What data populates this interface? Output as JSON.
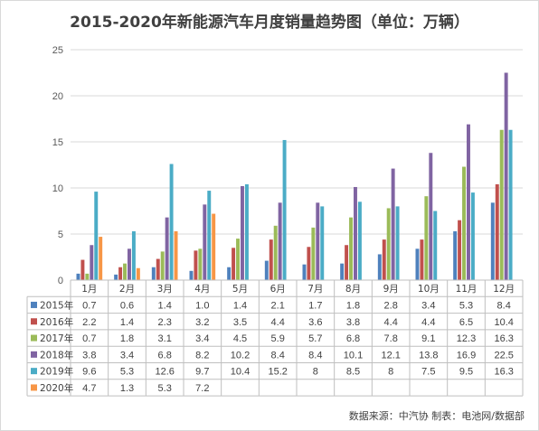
{
  "chart_data": {
    "type": "bar",
    "title": "2015-2020年新能源汽车月度销量趋势图（单位：万辆）",
    "categories": [
      "1月",
      "2月",
      "3月",
      "4月",
      "5月",
      "6月",
      "7月",
      "8月",
      "9月",
      "10月",
      "11月",
      "12月"
    ],
    "ylim": [
      0,
      25
    ],
    "yticks": [
      "0",
      "5",
      "10",
      "15",
      "20",
      "25"
    ],
    "grid": true,
    "legend": "data-table",
    "series": [
      {
        "name": "2015年",
        "color": "#4f81bd",
        "values": [
          0.7,
          0.6,
          1.4,
          1.0,
          1.4,
          2.1,
          1.7,
          1.8,
          2.8,
          3.4,
          5.3,
          8.4
        ],
        "labels": [
          "0.7",
          "0.6",
          "1.4",
          "1.0",
          "1.4",
          "2.1",
          "1.7",
          "1.8",
          "2.8",
          "3.4",
          "5.3",
          "8.4"
        ]
      },
      {
        "name": "2016年",
        "color": "#c0504d",
        "values": [
          2.2,
          1.4,
          2.3,
          3.2,
          3.5,
          4.4,
          3.6,
          3.8,
          4.4,
          4.4,
          6.5,
          10.4
        ],
        "labels": [
          "2.2",
          "1.4",
          "2.3",
          "3.2",
          "3.5",
          "4.4",
          "3.6",
          "3.8",
          "4.4",
          "4.4",
          "6.5",
          "10.4"
        ]
      },
      {
        "name": "2017年",
        "color": "#9bbb59",
        "values": [
          0.7,
          1.8,
          3.1,
          3.4,
          4.5,
          5.9,
          5.7,
          6.8,
          7.8,
          9.1,
          12.3,
          16.3
        ],
        "labels": [
          "0.7",
          "1.8",
          "3.1",
          "3.4",
          "4.5",
          "5.9",
          "5.7",
          "6.8",
          "7.8",
          "9.1",
          "12.3",
          "16.3"
        ]
      },
      {
        "name": "2018年",
        "color": "#8064a2",
        "values": [
          3.8,
          3.4,
          6.8,
          8.2,
          10.2,
          8.4,
          8.4,
          10.1,
          12.1,
          13.8,
          16.9,
          22.5
        ],
        "labels": [
          "3.8",
          "3.4",
          "6.8",
          "8.2",
          "10.2",
          "8.4",
          "8.4",
          "10.1",
          "12.1",
          "13.8",
          "16.9",
          "22.5"
        ]
      },
      {
        "name": "2019年",
        "color": "#4bacc6",
        "values": [
          9.6,
          5.3,
          12.6,
          9.7,
          10.4,
          15.2,
          8,
          8.5,
          8,
          7.5,
          9.5,
          16.3
        ],
        "labels": [
          "9.6",
          "5.3",
          "12.6",
          "9.7",
          "10.4",
          "15.2",
          "8",
          "8.5",
          "8",
          "7.5",
          "9.5",
          "16.3"
        ]
      },
      {
        "name": "2020年",
        "color": "#f79646",
        "values": [
          4.7,
          1.3,
          5.3,
          7.2,
          null,
          null,
          null,
          null,
          null,
          null,
          null,
          null
        ],
        "labels": [
          "4.7",
          "1.3",
          "5.3",
          "7.2",
          "",
          "",
          "",
          "",
          "",
          "",
          "",
          ""
        ]
      }
    ]
  },
  "footer": {
    "source": "数据来源：中汽协  制表：电池网/数据部"
  }
}
